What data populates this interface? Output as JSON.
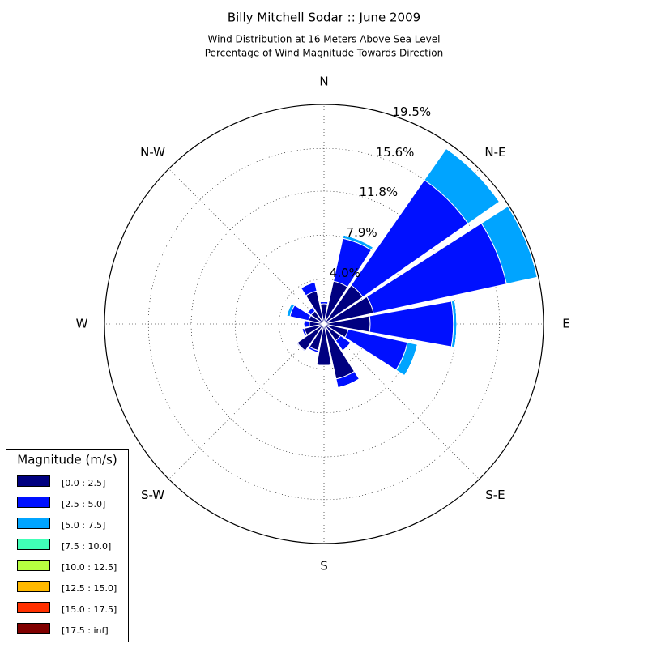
{
  "chart_data": {
    "type": "windrose",
    "title": "Billy Mitchell Sodar :: June 2009",
    "subtitle": "Wind Distribution at 16 Meters Above Sea Level",
    "subtitle2": "Percentage of Wind Magnitude Towards Direction",
    "legend_title": "Magnitude (m/s)",
    "categories": [
      "N",
      null,
      "N-E",
      null,
      "E",
      null,
      "S-E",
      null,
      "S",
      null,
      "S-W",
      null,
      "W",
      null,
      "N-W",
      null
    ],
    "series": [
      {
        "name": "[0.0 : 2.5]",
        "color": "#000080",
        "values": [
          1.8,
          3.9,
          4.2,
          4.5,
          4.1,
          2.2,
          1.8,
          5.0,
          3.7,
          2.4,
          2.9,
          1.8,
          1.3,
          1.4,
          1.4,
          3.0
        ]
      },
      {
        "name": "[2.5 : 5.0]",
        "color": "#0010ff",
        "values": [
          0.2,
          3.9,
          11.4,
          12.1,
          7.4,
          5.4,
          1.1,
          0.8,
          0,
          0.2,
          0.1,
          0.2,
          0.5,
          1.7,
          0.4,
          0.8
        ]
      },
      {
        "name": "[5.0 : 7.5]",
        "color": "#00a4ff",
        "values": [
          0,
          0.3,
          3.4,
          2.8,
          0.3,
          0.9,
          0,
          0,
          0,
          0,
          0,
          0,
          0,
          0.3,
          0,
          0
        ]
      },
      {
        "name": "[7.5 : 10.0]",
        "color": "#40ffb7",
        "values": [
          0,
          0,
          0,
          0,
          0,
          0,
          0,
          0,
          0,
          0,
          0,
          0,
          0,
          0,
          0,
          0
        ]
      },
      {
        "name": "[10.0 : 12.5]",
        "color": "#b7ff40",
        "values": [
          0,
          0,
          0,
          0,
          0,
          0,
          0,
          0,
          0,
          0,
          0,
          0,
          0,
          0,
          0,
          0
        ]
      },
      {
        "name": "[12.5 : 15.0]",
        "color": "#ffb900",
        "values": [
          0,
          0,
          0,
          0,
          0,
          0,
          0,
          0,
          0,
          0,
          0,
          0,
          0,
          0,
          0,
          0
        ]
      },
      {
        "name": "[15.0 : 17.5]",
        "color": "#ff3000",
        "values": [
          0,
          0,
          0,
          0,
          0,
          0,
          0,
          0,
          0,
          0,
          0,
          0,
          0,
          0,
          0,
          0
        ]
      },
      {
        "name": "[17.5 : inf]",
        "color": "#800000",
        "values": [
          0,
          0,
          0,
          0,
          0,
          0,
          0,
          0,
          0,
          0,
          0,
          0,
          0,
          0,
          0,
          0
        ]
      }
    ],
    "ylim": [
      0,
      19.5
    ],
    "yticks": [
      {
        "value": 4.0,
        "label": "4.0%"
      },
      {
        "value": 7.9,
        "label": "7.9%"
      },
      {
        "value": 11.8,
        "label": "11.8%"
      },
      {
        "value": 15.6,
        "label": "15.6%"
      },
      {
        "value": 19.5,
        "label": "19.5%"
      }
    ],
    "grid": true
  }
}
